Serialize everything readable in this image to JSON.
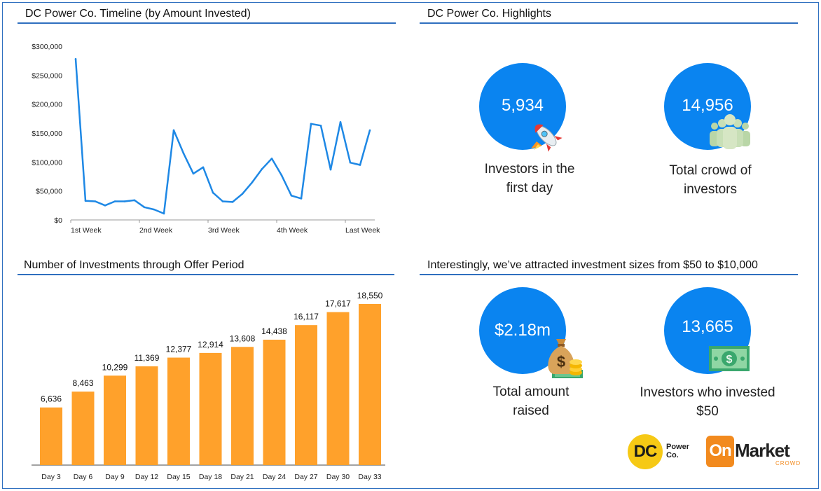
{
  "colors": {
    "accent_blue": "#0a84f0",
    "line_blue": "#1e88e5",
    "bar_orange": "#ffa12b",
    "rule_blue": "#2f6fbf",
    "logo_yellow": "#f6c915",
    "logo_orange": "#f28a1e"
  },
  "panels": {
    "timeline_title": "DC Power Co. Timeline (by Amount Invested)",
    "highlights_title": "DC Power Co. Highlights",
    "investments_title": "Number of Investments through Offer Period",
    "sizes_title": "Interestingly, we’ve attracted investment sizes from $50 to $10,000"
  },
  "highlights": [
    {
      "value": "5,934",
      "caption_line1": "Investors in the",
      "caption_line2": "first day",
      "icon": "rocket-icon"
    },
    {
      "value": "14,956",
      "caption_line1": "Total crowd of",
      "caption_line2": "investors",
      "icon": "people-icon"
    },
    {
      "value": "$2.18m",
      "caption_line1": "Total amount",
      "caption_line2": "raised",
      "icon": "money-bag-icon"
    },
    {
      "value": "13,665",
      "caption_line1": "Investors who invested",
      "caption_line2": "$50",
      "icon": "dollar-bill-icon"
    }
  ],
  "logos": {
    "dc_mark": "DC",
    "dc_name_line1": "Power",
    "dc_name_line2": "Co.",
    "om_on": "On",
    "om_market": "Market",
    "om_crowd": "CROWD"
  },
  "chart_data": [
    {
      "type": "line",
      "title": "DC Power Co. Timeline (by Amount Invested)",
      "xlabel": "",
      "ylabel": "",
      "y_ticks": [
        "$0",
        "$50,000",
        "$100,000",
        "$150,000",
        "$200,000",
        "$250,000",
        "$300,000"
      ],
      "ylim": [
        0,
        300000
      ],
      "x_ticks": [
        {
          "label": "1st Week",
          "index": 0
        },
        {
          "label": "2nd Week",
          "index": 7
        },
        {
          "label": "3rd Week",
          "index": 14
        },
        {
          "label": "4th Week",
          "index": 21
        },
        {
          "label": "Last Week",
          "index": 28
        }
      ],
      "grid": false,
      "values": [
        278000,
        33000,
        32000,
        25000,
        32000,
        32000,
        34000,
        22000,
        18000,
        11000,
        155000,
        115000,
        80000,
        91000,
        47000,
        32000,
        31000,
        45000,
        65000,
        88000,
        106000,
        77000,
        42000,
        37000,
        166000,
        163000,
        87000,
        169000,
        99000,
        95000,
        155000
      ]
    },
    {
      "type": "bar",
      "title": "Number of Investments through Offer Period",
      "xlabel": "",
      "ylabel": "",
      "categories": [
        "Day 3",
        "Day 6",
        "Day 9",
        "Day 12",
        "Day 15",
        "Day 18",
        "Day 21",
        "Day 24",
        "Day 27",
        "Day 30",
        "Day 33"
      ],
      "values": [
        6636,
        8463,
        10299,
        11369,
        12377,
        12914,
        13608,
        14438,
        16117,
        17617,
        18550
      ],
      "labels": [
        "6,636",
        "8,463",
        "10,299",
        "11,369",
        "12,377",
        "12,914",
        "13,608",
        "14,438",
        "16,117",
        "17,617",
        "18,550"
      ],
      "ylim": [
        0,
        19500
      ],
      "grid": false
    }
  ]
}
